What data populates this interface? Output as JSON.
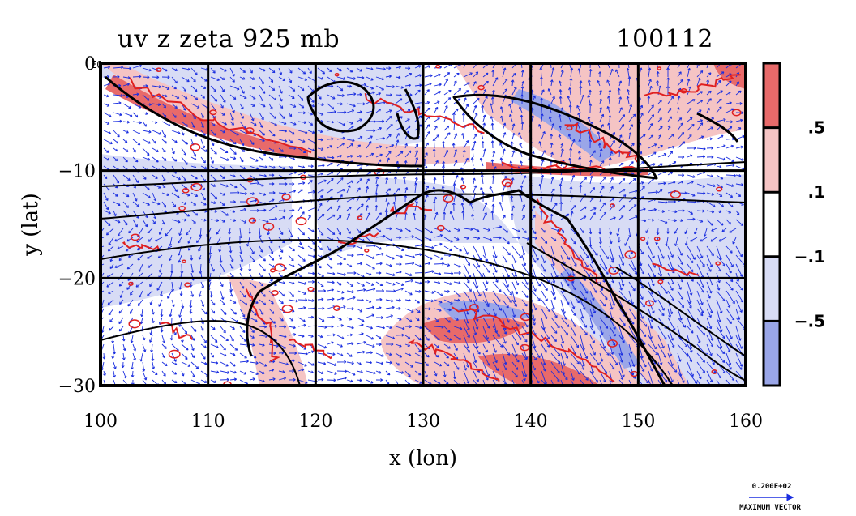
{
  "title": "uv z zeta 925 mb",
  "date_code": "100112",
  "x_axis": {
    "label": "x (lon)",
    "range": [
      100,
      160
    ],
    "ticks": [
      "100",
      "110",
      "120",
      "130",
      "140",
      "150",
      "160"
    ]
  },
  "y_axis": {
    "label": "y (lat)",
    "range": [
      -30,
      0
    ],
    "ticks": [
      "0",
      "−10",
      "−20",
      "−30"
    ],
    "top_corner_label": "E0"
  },
  "colorbar": {
    "labels": [
      ".5",
      ".1",
      "−.1",
      "−.5"
    ],
    "bins": [
      {
        "from": 0.5,
        "to": 1.0,
        "color": "#e86a6a"
      },
      {
        "from": 0.1,
        "to": 0.5,
        "color": "#f5c4c4"
      },
      {
        "from": -0.1,
        "to": 0.1,
        "color": "#ffffff"
      },
      {
        "from": -0.5,
        "to": -0.1,
        "color": "#d8dcf5"
      },
      {
        "from": -1.0,
        "to": -0.5,
        "color": "#9aa6e8"
      }
    ]
  },
  "vector_key": {
    "value": "0.200E+02",
    "caption": "MAXIMUM VECTOR"
  },
  "colors": {
    "vector": "#1a2ee0",
    "positive": "#e02020",
    "negative_fill": "#d8dcf5",
    "coast": "#000000"
  },
  "map": {
    "type": "contour+vector",
    "grid_lon": [
      110,
      120,
      130,
      140,
      150
    ],
    "grid_lat": [
      -10,
      -20
    ]
  }
}
